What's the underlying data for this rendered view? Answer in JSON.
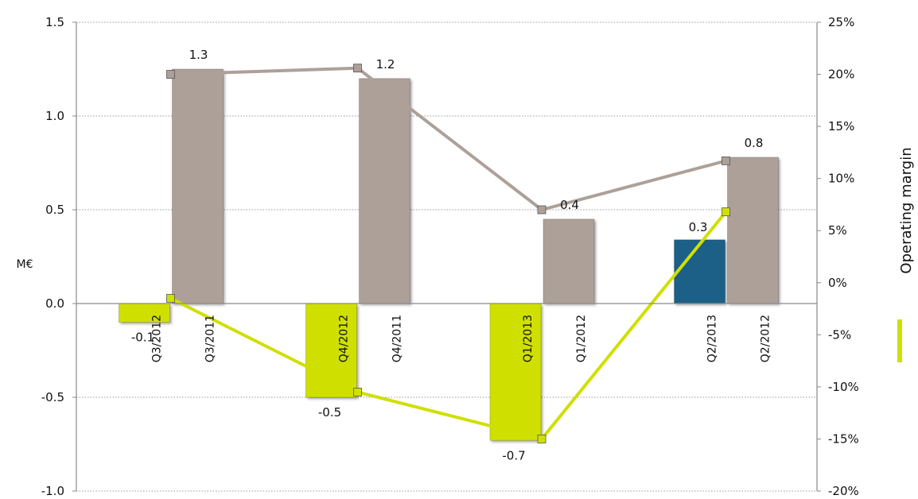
{
  "chart_data": {
    "type": "bar",
    "y_left": {
      "label": "M€",
      "range": [
        -1.0,
        1.5
      ],
      "ticks": [
        "1.5",
        "1.0",
        "0.5",
        "0.0",
        "-0.5",
        "-1.0"
      ]
    },
    "y_right": {
      "label": "Operating margin",
      "range": [
        -20,
        25
      ],
      "ticks": [
        "25%",
        "20%",
        "15%",
        "10%",
        "5%",
        "0%",
        "-5%",
        "-10%",
        "-15%",
        "-20%"
      ]
    },
    "grid": "horizontal dotted",
    "groups": [
      {
        "current": {
          "period": "Q3/2012",
          "value": -0.1,
          "label": "-0.1",
          "color": "#cfe000"
        },
        "prior": {
          "period": "Q3/2011",
          "value": 1.25,
          "label": "1.3",
          "color": "#ada099"
        }
      },
      {
        "current": {
          "period": "Q4/2012",
          "value": -0.5,
          "label": "-0.5",
          "color": "#cfe000"
        },
        "prior": {
          "period": "Q4/2011",
          "value": 1.2,
          "label": "1.2",
          "color": "#ada099"
        }
      },
      {
        "current": {
          "period": "Q1/2013",
          "value": -0.73,
          "label": "-0.7",
          "color": "#cfe000"
        },
        "prior": {
          "period": "Q1/2012",
          "value": 0.45,
          "label": "0.4",
          "color": "#ada099"
        }
      },
      {
        "current": {
          "period": "Q2/2013",
          "value": 0.34,
          "label": "0.3",
          "color": "#1f5f87"
        },
        "prior": {
          "period": "Q2/2012",
          "value": 0.78,
          "label": "0.8",
          "color": "#ada099"
        }
      }
    ],
    "margin_series": [
      {
        "color": "#cfe000",
        "values_pct": [
          -1.5,
          -10.5,
          -15.0,
          6.8
        ]
      },
      {
        "color": "#ada099",
        "values_pct": [
          20.0,
          20.6,
          7.0,
          11.7
        ]
      }
    ],
    "legend": {
      "color": "#cfe000"
    }
  }
}
